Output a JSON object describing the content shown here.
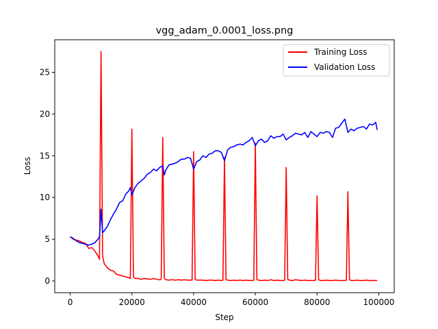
{
  "chart_data": {
    "type": "line",
    "title": "vgg_adam_0.0001_loss.png",
    "xlabel": "Step",
    "ylabel": "Loss",
    "xlim": [
      -5000,
      105000
    ],
    "ylim": [
      -1.4,
      28.9
    ],
    "xticks": [
      0,
      20000,
      40000,
      60000,
      80000,
      100000
    ],
    "yticks": [
      0,
      5,
      10,
      15,
      20,
      25
    ],
    "legend": {
      "position": "top-right"
    },
    "grid": false,
    "series": [
      {
        "name": "Training Loss",
        "color": "#ff0000",
        "points": [
          [
            0,
            5.3
          ],
          [
            1000,
            5.0
          ],
          [
            2000,
            4.9
          ],
          [
            3000,
            4.8
          ],
          [
            4000,
            4.6
          ],
          [
            5000,
            4.5
          ],
          [
            6000,
            3.9
          ],
          [
            7000,
            4.0
          ],
          [
            8000,
            3.6
          ],
          [
            9000,
            3.0
          ],
          [
            9500,
            2.6
          ],
          [
            10000,
            27.5
          ],
          [
            10500,
            3.0
          ],
          [
            11000,
            2.1
          ],
          [
            12000,
            1.6
          ],
          [
            13000,
            1.3
          ],
          [
            14000,
            1.2
          ],
          [
            15000,
            0.8
          ],
          [
            16000,
            0.7
          ],
          [
            17000,
            0.6
          ],
          [
            18000,
            0.5
          ],
          [
            19000,
            0.4
          ],
          [
            19500,
            0.3
          ],
          [
            20000,
            18.2
          ],
          [
            20500,
            0.5
          ],
          [
            21000,
            0.3
          ],
          [
            22000,
            0.3
          ],
          [
            23000,
            0.2
          ],
          [
            24000,
            0.3
          ],
          [
            25000,
            0.25
          ],
          [
            26000,
            0.2
          ],
          [
            27000,
            0.3
          ],
          [
            28000,
            0.2
          ],
          [
            29000,
            0.15
          ],
          [
            29500,
            0.2
          ],
          [
            30000,
            17.2
          ],
          [
            30500,
            0.3
          ],
          [
            31000,
            0.15
          ],
          [
            32000,
            0.1
          ],
          [
            33000,
            0.15
          ],
          [
            34000,
            0.1
          ],
          [
            35000,
            0.15
          ],
          [
            36000,
            0.1
          ],
          [
            37000,
            0.15
          ],
          [
            38000,
            0.1
          ],
          [
            39000,
            0.1
          ],
          [
            39500,
            0.1
          ],
          [
            40000,
            15.5
          ],
          [
            40500,
            0.2
          ],
          [
            41000,
            0.1
          ],
          [
            42000,
            0.1
          ],
          [
            43000,
            0.1
          ],
          [
            44000,
            0.05
          ],
          [
            45000,
            0.1
          ],
          [
            46000,
            0.1
          ],
          [
            47000,
            0.05
          ],
          [
            48000,
            0.1
          ],
          [
            49000,
            0.05
          ],
          [
            49500,
            0.1
          ],
          [
            50000,
            14.8
          ],
          [
            50500,
            0.2
          ],
          [
            51000,
            0.1
          ],
          [
            52000,
            0.05
          ],
          [
            53000,
            0.1
          ],
          [
            54000,
            0.05
          ],
          [
            55000,
            0.1
          ],
          [
            56000,
            0.05
          ],
          [
            57000,
            0.1
          ],
          [
            58000,
            0.05
          ],
          [
            59000,
            0.05
          ],
          [
            59500,
            0.1
          ],
          [
            60000,
            16.5
          ],
          [
            60500,
            0.2
          ],
          [
            61000,
            0.1
          ],
          [
            62000,
            0.05
          ],
          [
            63000,
            0.1
          ],
          [
            64000,
            0.05
          ],
          [
            65000,
            0.15
          ],
          [
            66000,
            0.05
          ],
          [
            67000,
            0.1
          ],
          [
            68000,
            0.05
          ],
          [
            69000,
            0.05
          ],
          [
            69500,
            0.1
          ],
          [
            70000,
            13.6
          ],
          [
            70500,
            0.2
          ],
          [
            71000,
            0.1
          ],
          [
            72000,
            0.05
          ],
          [
            73000,
            0.15
          ],
          [
            74000,
            0.1
          ],
          [
            75000,
            0.05
          ],
          [
            76000,
            0.1
          ],
          [
            77000,
            0.05
          ],
          [
            78000,
            0.05
          ],
          [
            79000,
            0.05
          ],
          [
            79500,
            0.1
          ],
          [
            80000,
            10.2
          ],
          [
            80500,
            0.2
          ],
          [
            81000,
            0.05
          ],
          [
            82000,
            0.05
          ],
          [
            83000,
            0.1
          ],
          [
            84000,
            0.05
          ],
          [
            85000,
            0.05
          ],
          [
            86000,
            0.1
          ],
          [
            87000,
            0.05
          ],
          [
            88000,
            0.05
          ],
          [
            89000,
            0.05
          ],
          [
            89500,
            0.1
          ],
          [
            90000,
            10.7
          ],
          [
            90500,
            0.2
          ],
          [
            91000,
            0.05
          ],
          [
            92000,
            0.05
          ],
          [
            93000,
            0.1
          ],
          [
            94000,
            0.05
          ],
          [
            95000,
            0.05
          ],
          [
            96000,
            0.1
          ],
          [
            97000,
            0.05
          ],
          [
            98000,
            0.05
          ],
          [
            99000,
            0.05
          ],
          [
            99500,
            0.05
          ]
        ]
      },
      {
        "name": "Validation Loss",
        "color": "#0000ff",
        "points": [
          [
            0,
            5.3
          ],
          [
            1000,
            5.1
          ],
          [
            2000,
            4.8
          ],
          [
            3000,
            4.6
          ],
          [
            4000,
            4.5
          ],
          [
            5000,
            4.4
          ],
          [
            6000,
            4.3
          ],
          [
            7000,
            4.4
          ],
          [
            8000,
            4.6
          ],
          [
            9000,
            5.0
          ],
          [
            9500,
            5.3
          ],
          [
            10000,
            8.6
          ],
          [
            10500,
            5.8
          ],
          [
            11000,
            6.0
          ],
          [
            12000,
            6.5
          ],
          [
            13000,
            7.3
          ],
          [
            14000,
            8.0
          ],
          [
            15000,
            8.6
          ],
          [
            16000,
            9.4
          ],
          [
            17000,
            9.6
          ],
          [
            18000,
            10.4
          ],
          [
            19000,
            10.8
          ],
          [
            19500,
            11.2
          ],
          [
            20000,
            10.3
          ],
          [
            21000,
            11.2
          ],
          [
            22000,
            11.7
          ],
          [
            23000,
            12.0
          ],
          [
            24000,
            12.3
          ],
          [
            25000,
            12.8
          ],
          [
            26000,
            13.0
          ],
          [
            27000,
            13.4
          ],
          [
            28000,
            13.2
          ],
          [
            29000,
            13.6
          ],
          [
            30000,
            13.8
          ],
          [
            30500,
            12.7
          ],
          [
            31000,
            13.3
          ],
          [
            32000,
            13.9
          ],
          [
            33000,
            14.0
          ],
          [
            34000,
            14.1
          ],
          [
            35000,
            14.3
          ],
          [
            36000,
            14.6
          ],
          [
            37000,
            14.6
          ],
          [
            38000,
            14.8
          ],
          [
            39000,
            14.7
          ],
          [
            40000,
            13.4
          ],
          [
            41000,
            14.3
          ],
          [
            42000,
            14.5
          ],
          [
            43000,
            15.0
          ],
          [
            44000,
            14.8
          ],
          [
            45000,
            15.2
          ],
          [
            46000,
            15.3
          ],
          [
            47000,
            15.6
          ],
          [
            48000,
            15.6
          ],
          [
            49000,
            15.4
          ],
          [
            50000,
            14.4
          ],
          [
            51000,
            15.7
          ],
          [
            52000,
            16.0
          ],
          [
            53000,
            16.1
          ],
          [
            54000,
            16.3
          ],
          [
            55000,
            16.4
          ],
          [
            56000,
            16.3
          ],
          [
            57000,
            16.6
          ],
          [
            58000,
            16.8
          ],
          [
            59000,
            17.2
          ],
          [
            60000,
            16.2
          ],
          [
            61000,
            16.8
          ],
          [
            62000,
            17.0
          ],
          [
            63000,
            16.6
          ],
          [
            64000,
            16.8
          ],
          [
            65000,
            17.4
          ],
          [
            66000,
            17.1
          ],
          [
            67000,
            17.3
          ],
          [
            68000,
            17.3
          ],
          [
            69000,
            17.6
          ],
          [
            70000,
            16.9
          ],
          [
            71000,
            17.2
          ],
          [
            72000,
            17.4
          ],
          [
            73000,
            17.7
          ],
          [
            74000,
            17.6
          ],
          [
            75000,
            17.5
          ],
          [
            76000,
            17.8
          ],
          [
            77000,
            17.2
          ],
          [
            78000,
            17.9
          ],
          [
            79000,
            17.6
          ],
          [
            80000,
            17.3
          ],
          [
            81000,
            17.8
          ],
          [
            82000,
            17.7
          ],
          [
            83000,
            17.9
          ],
          [
            84000,
            17.8
          ],
          [
            85000,
            17.2
          ],
          [
            86000,
            18.3
          ],
          [
            87000,
            18.4
          ],
          [
            88000,
            18.9
          ],
          [
            89000,
            19.4
          ],
          [
            90000,
            17.8
          ],
          [
            91000,
            18.2
          ],
          [
            92000,
            18.0
          ],
          [
            93000,
            18.3
          ],
          [
            94000,
            18.4
          ],
          [
            95000,
            18.5
          ],
          [
            96000,
            18.2
          ],
          [
            97000,
            18.8
          ],
          [
            98000,
            18.7
          ],
          [
            99000,
            19.0
          ],
          [
            99500,
            18.1
          ]
        ]
      }
    ]
  }
}
